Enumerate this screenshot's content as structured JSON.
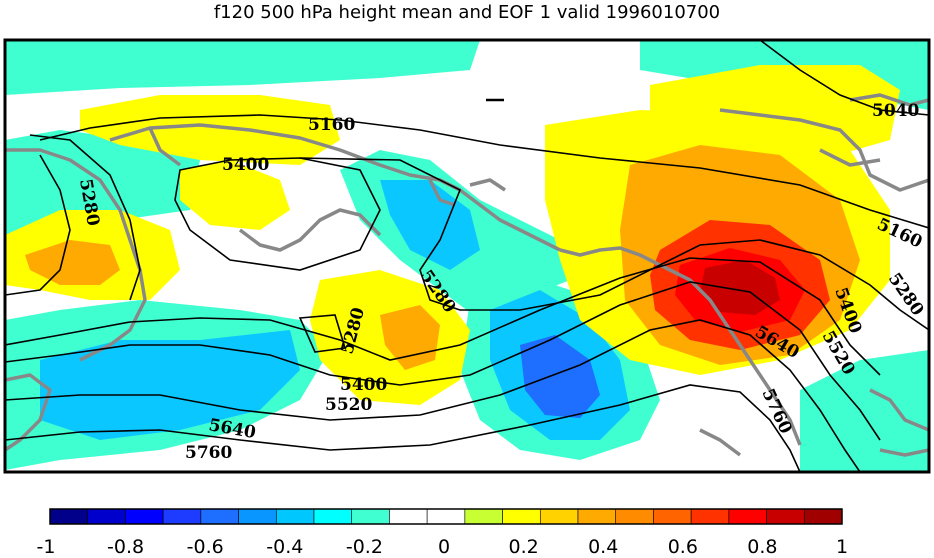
{
  "title": "f120 500 hPa height mean and EOF 1 valid 1996010700",
  "contour_labels": [
    "5160",
    "5040",
    "5280",
    "5400",
    "5160",
    "5280",
    "5280",
    "5280",
    "5400",
    "5520",
    "5640",
    "5760",
    "5640",
    "5520",
    "5400",
    "5760"
  ],
  "colorbar": {
    "colors": [
      "#00008b",
      "#0000cd",
      "#0000ff",
      "#1e3cff",
      "#1e6eff",
      "#0a96ff",
      "#00c8ff",
      "#00ffff",
      "#40ffd0",
      "#ffffff",
      "#ffffff",
      "#c8ff32",
      "#ffff00",
      "#ffd200",
      "#ffaa00",
      "#ff8c00",
      "#ff6400",
      "#ff3200",
      "#ff0000",
      "#c80000",
      "#a00000"
    ],
    "tick_labels": [
      "-1",
      "-0.8",
      "-0.6",
      "-0.4",
      "-0.2",
      "0",
      "0.2",
      "0.4",
      "0.6",
      "0.8",
      "1"
    ]
  }
}
